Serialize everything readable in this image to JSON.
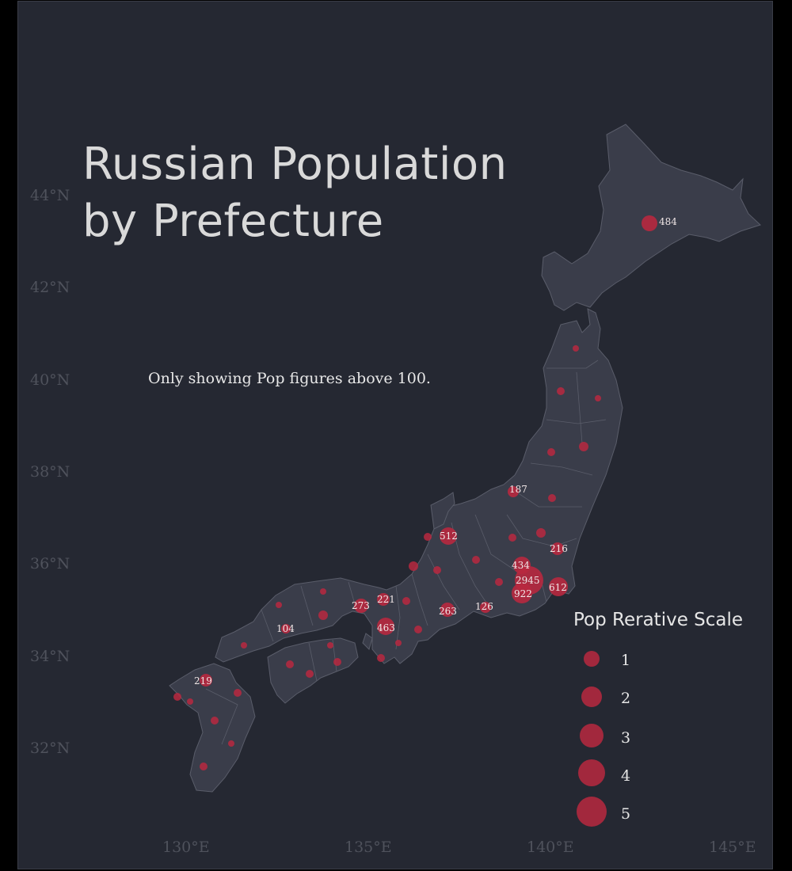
{
  "title_line1": "Russian Population",
  "title_line2": "by Prefecture",
  "note": "Only showing Pop figures above 100.",
  "legend": {
    "title": "Pop Rerative Scale",
    "items": [
      "1",
      "2",
      "3",
      "4",
      "5"
    ]
  },
  "axes": {
    "lat_ticks": [
      "44°N",
      "42°N",
      "40°N",
      "38°N",
      "36°N",
      "34°N",
      "32°N"
    ],
    "lon_ticks": [
      "130°E",
      "135°E",
      "140°E",
      "145°E"
    ]
  },
  "colors": {
    "background": "#252832",
    "land": "#3a3d4a",
    "border": "#5a5d6a",
    "bubble": "#b8283f"
  },
  "bubble_labels": [
    "484",
    "187",
    "512",
    "216",
    "434",
    "2945",
    "922",
    "612",
    "221",
    "273",
    "263",
    "126",
    "463",
    "104",
    "219"
  ]
}
